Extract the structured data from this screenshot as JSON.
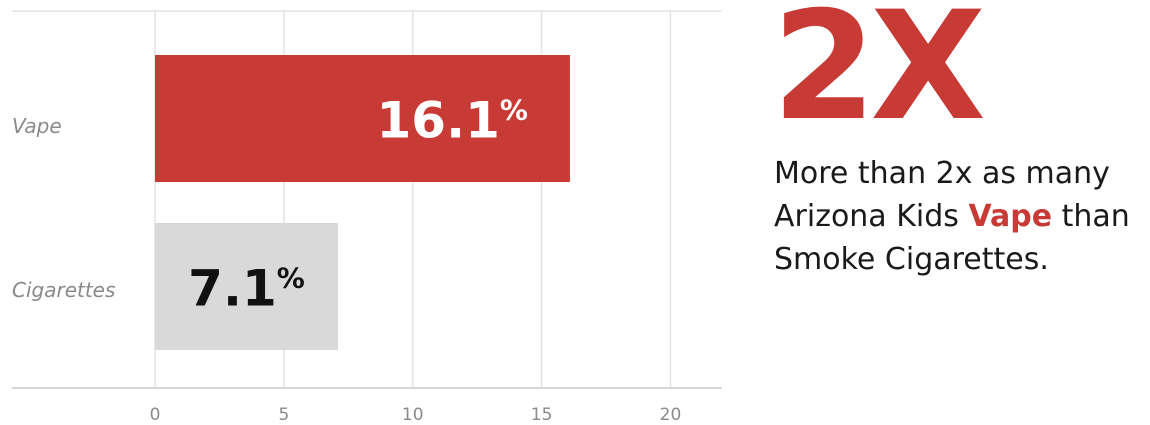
{
  "chart_data": {
    "type": "bar",
    "orientation": "horizontal",
    "categories": [
      "Vape",
      "Cigarettes"
    ],
    "values": [
      16.1,
      7.1
    ],
    "value_labels": [
      "16.1",
      "7.1"
    ],
    "value_suffix": "%",
    "bar_colors": [
      "#c83a36",
      "#d9d9d9"
    ],
    "label_colors": [
      "#ffffff",
      "#111111"
    ],
    "xlim": [
      0,
      22
    ],
    "xticks": [
      0,
      5,
      10,
      15,
      20
    ],
    "grid": true,
    "title": "",
    "xlabel": "",
    "ylabel": ""
  },
  "callout": {
    "big_number": "2X",
    "line1": "More than 2x as many",
    "line2_prefix": "Arizona Kids ",
    "line2_highlight": "Vape",
    "line2_suffix": " than",
    "line3": "Smoke Cigarettes.",
    "accent_color": "#c83a36"
  }
}
